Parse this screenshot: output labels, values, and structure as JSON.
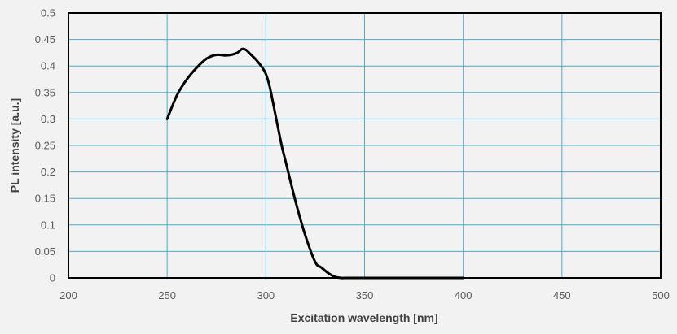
{
  "chart_data": {
    "type": "line",
    "title": "",
    "xlabel": "Excitation wavelength [nm]",
    "ylabel": "PL intensity [a.u.]",
    "xlim": [
      200,
      500
    ],
    "ylim": [
      0,
      0.5
    ],
    "x_ticks": [
      200,
      250,
      300,
      350,
      400,
      450,
      500
    ],
    "y_ticks": [
      0,
      0.05,
      0.1,
      0.15,
      0.2,
      0.25,
      0.3,
      0.35,
      0.4,
      0.45,
      0.5
    ],
    "x_tick_labels": [
      "200",
      "250",
      "300",
      "350",
      "400",
      "450",
      "500"
    ],
    "y_tick_labels": [
      "0",
      "0.05",
      "0.1",
      "0.15",
      "0.2",
      "0.25",
      "0.3",
      "0.35",
      "0.4",
      "0.45",
      "0.5"
    ],
    "grid": true,
    "colors": {
      "background": "#f2f2f2",
      "grid": "#4bacc6",
      "line": "#000000",
      "frame": "#000000"
    },
    "series": [
      {
        "x": [
          250,
          255,
          260,
          265,
          270,
          275,
          280,
          285,
          288,
          290,
          292,
          295,
          298,
          300,
          302,
          305,
          308,
          310,
          315,
          320,
          325,
          328,
          332,
          335,
          338,
          340,
          350,
          360,
          370,
          380,
          390,
          400
        ],
        "values": [
          0.3,
          0.345,
          0.375,
          0.397,
          0.414,
          0.421,
          0.42,
          0.424,
          0.432,
          0.43,
          0.423,
          0.412,
          0.398,
          0.385,
          0.36,
          0.305,
          0.25,
          0.22,
          0.145,
          0.08,
          0.03,
          0.02,
          0.008,
          0.002,
          0.0,
          0.0,
          0.0,
          0.0,
          0.0,
          0.0,
          0.0,
          0.0
        ]
      }
    ]
  }
}
